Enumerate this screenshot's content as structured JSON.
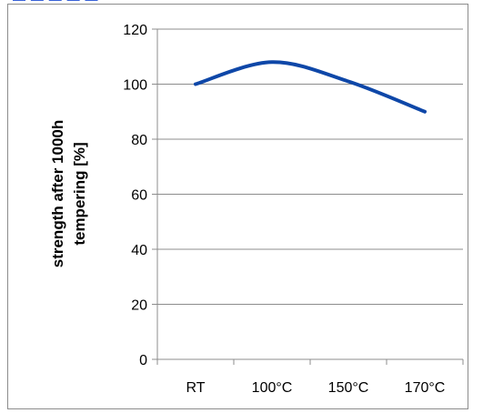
{
  "header_fragment": "— — — —   —",
  "chart_data": {
    "type": "line",
    "categories": [
      "RT",
      "100°C",
      "150°C",
      "170°C"
    ],
    "series": [
      {
        "values": [
          100,
          108,
          101,
          90
        ],
        "color": "#0e47a8"
      }
    ],
    "ylabel_line1": "strength after 1000h",
    "ylabel_line2": "tempering [%]",
    "ylim": [
      0,
      120
    ],
    "yticks": [
      0,
      20,
      40,
      60,
      80,
      100,
      120
    ],
    "grid": "horizontal",
    "legend": "none",
    "smooth": true
  }
}
